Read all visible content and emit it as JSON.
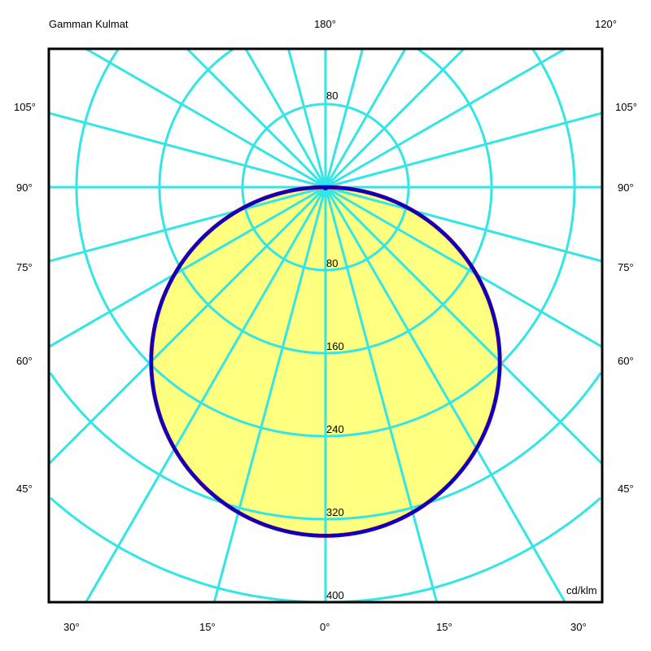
{
  "chart_data": {
    "type": "polar",
    "title": "Gamman Kulmat",
    "unit": "cd/klm",
    "radial_ticks": [
      80,
      160,
      240,
      320,
      400
    ],
    "radial_max": 400,
    "spoke_step_deg": 15,
    "angle_labels": {
      "top_center": "180°",
      "top_right": "120°",
      "left": [
        "105°",
        "90°",
        "75°",
        "60°",
        "45°"
      ],
      "right": [
        "105°",
        "90°",
        "75°",
        "60°",
        "45°"
      ],
      "bottom": [
        "30°",
        "15°",
        "0°",
        "15°",
        "30°"
      ]
    },
    "series": [
      {
        "color": "#cc0000",
        "peak_intensity": 336,
        "distribution": "cosine"
      },
      {
        "color": "#0000cc",
        "peak_intensity": 336,
        "distribution": "cosine"
      }
    ],
    "colors": {
      "grid": "#33e6e6",
      "fill": "#ffff80",
      "frame": "#000000"
    }
  }
}
